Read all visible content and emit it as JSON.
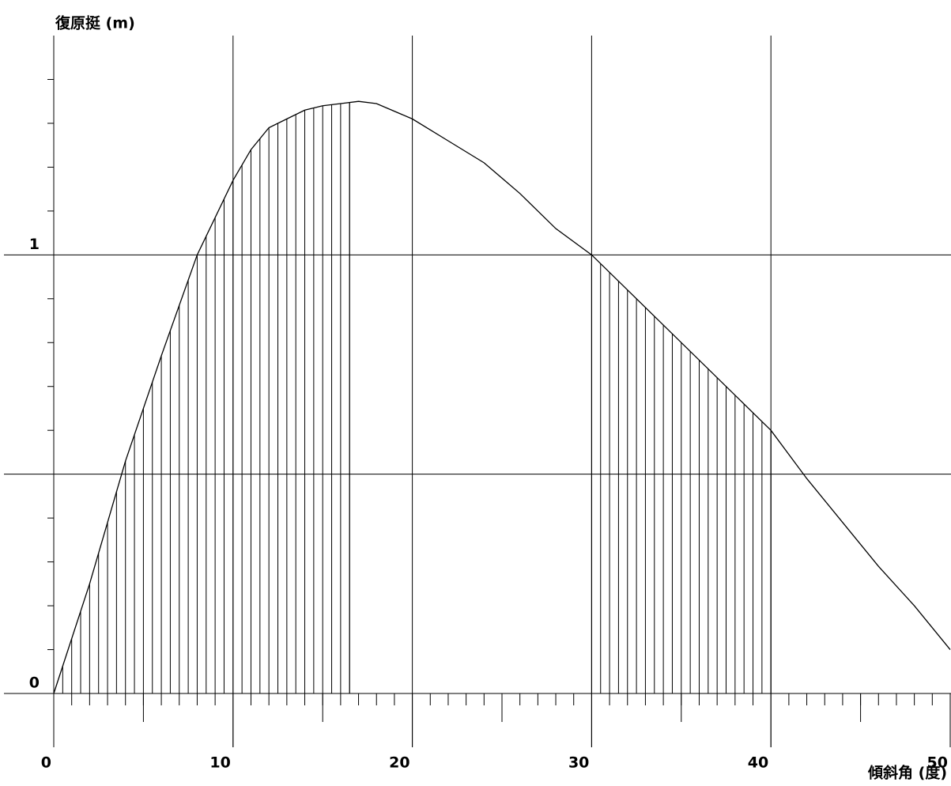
{
  "chart_data": {
    "type": "line",
    "y_label": "復原挺 (m)",
    "x_label": "傾斜角 (度)",
    "x": [
      0,
      2,
      4,
      6,
      8,
      10,
      11,
      12,
      13,
      14,
      15,
      16,
      17,
      18,
      20,
      22,
      24,
      26,
      28,
      30,
      32,
      34,
      36,
      38,
      40,
      42,
      44,
      46,
      48,
      50
    ],
    "series": [
      {
        "color": "#000000",
        "values": [
          0,
          0.25,
          0.53,
          0.77,
          1.0,
          1.17,
          1.24,
          1.29,
          1.31,
          1.33,
          1.34,
          1.345,
          1.35,
          1.345,
          1.31,
          1.26,
          1.21,
          1.14,
          1.06,
          1.0,
          0.92,
          0.84,
          0.76,
          0.68,
          0.6,
          0.49,
          0.39,
          0.29,
          0.2,
          0.1
        ]
      }
    ],
    "shaded_ranges": [
      [
        0,
        16.5
      ],
      [
        30,
        40
      ]
    ],
    "xlim": [
      0,
      50
    ],
    "ylim": [
      0,
      1.5
    ],
    "xticks": [
      0,
      10,
      20,
      30,
      40,
      50
    ],
    "yticks": [
      0,
      1
    ],
    "x_gridlines": [
      10,
      20,
      30,
      40
    ],
    "y_gridlines": [
      0,
      0.5,
      1
    ],
    "x_minor_ticks": [
      1,
      2,
      3,
      4,
      5,
      6,
      7,
      8,
      9,
      11,
      12,
      13,
      14,
      15,
      16,
      17,
      18,
      19,
      21,
      22,
      23,
      24,
      25,
      26,
      27,
      28,
      29,
      31,
      32,
      33,
      34,
      35,
      36,
      37,
      38,
      39,
      41,
      42,
      43,
      44,
      45,
      46,
      47,
      48,
      49
    ],
    "x_mid_ticks": [
      5,
      15,
      25,
      35,
      45
    ],
    "y_minor_ticks": [
      0.1,
      0.2,
      0.3,
      0.4,
      0.6,
      0.7,
      0.8,
      0.9,
      1.1,
      1.2,
      1.3,
      1.4
    ]
  }
}
